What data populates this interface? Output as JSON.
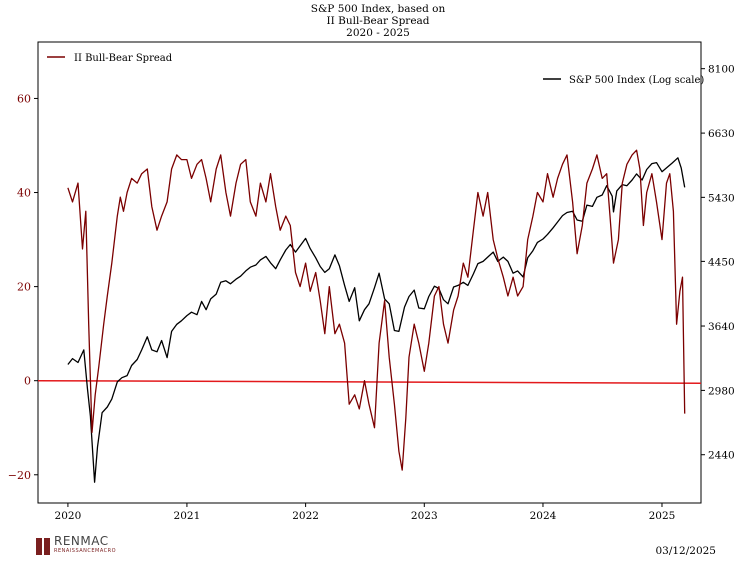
{
  "title": {
    "line1": "S&P 500 Index, based on",
    "line2": "II Bull-Bear Spread",
    "line3": "2020 - 2025"
  },
  "footer": {
    "logo_name": "RENMAC",
    "logo_sub": "RENAISSANCEMACRO",
    "date": "03/12/2025"
  },
  "colors": {
    "spread": "#7b0000",
    "sp500": "#000000",
    "zero_line": "#e3191c"
  },
  "chart_data": {
    "type": "line",
    "title": "S&P 500 Index, based on II Bull-Bear Spread 2020 - 2025",
    "x_ticks": [
      "2020",
      "2021",
      "2022",
      "2023",
      "2024",
      "2025"
    ],
    "x_range": [
      "2019-10-01",
      "2025-05-01"
    ],
    "y_left": {
      "range": [
        -26,
        72
      ],
      "ticks": [
        -20,
        0,
        20,
        40,
        60
      ],
      "tick_color": "#7b0000"
    },
    "y_right": {
      "scale": "log",
      "range": [
        2100,
        8800
      ],
      "ticks": [
        2440,
        2980,
        3640,
        4450,
        5430,
        6630,
        8100
      ]
    },
    "reference_line": {
      "axis": "left",
      "value": 0,
      "color": "#e3191c"
    },
    "legend": [
      {
        "name": "II Bull-Bear Spread",
        "position": "top-left"
      },
      {
        "name": "S&P 500 Index (Log scale)",
        "position": "top-right"
      }
    ],
    "series": [
      {
        "name": "II Bull-Bear Spread",
        "axis": "left",
        "points": [
          [
            "2020-01-01",
            41
          ],
          [
            "2020-01-15",
            38
          ],
          [
            "2020-02-01",
            42
          ],
          [
            "2020-02-15",
            28
          ],
          [
            "2020-02-25",
            36
          ],
          [
            "2020-03-05",
            12
          ],
          [
            "2020-03-15",
            -11
          ],
          [
            "2020-03-25",
            -3
          ],
          [
            "2020-04-05",
            3
          ],
          [
            "2020-04-20",
            12
          ],
          [
            "2020-05-01",
            18
          ],
          [
            "2020-05-15",
            25
          ],
          [
            "2020-06-01",
            35
          ],
          [
            "2020-06-10",
            39
          ],
          [
            "2020-06-20",
            36
          ],
          [
            "2020-07-01",
            40
          ],
          [
            "2020-07-15",
            43
          ],
          [
            "2020-08-01",
            42
          ],
          [
            "2020-08-15",
            44
          ],
          [
            "2020-09-01",
            45
          ],
          [
            "2020-09-15",
            37
          ],
          [
            "2020-10-01",
            32
          ],
          [
            "2020-10-15",
            35
          ],
          [
            "2020-11-01",
            38
          ],
          [
            "2020-11-15",
            45
          ],
          [
            "2020-12-01",
            48
          ],
          [
            "2020-12-15",
            47
          ],
          [
            "2021-01-01",
            47
          ],
          [
            "2021-01-15",
            43
          ],
          [
            "2021-02-01",
            46
          ],
          [
            "2021-02-15",
            47
          ],
          [
            "2021-03-01",
            43
          ],
          [
            "2021-03-15",
            38
          ],
          [
            "2021-04-01",
            45
          ],
          [
            "2021-04-15",
            48
          ],
          [
            "2021-05-01",
            40
          ],
          [
            "2021-05-15",
            35
          ],
          [
            "2021-06-01",
            42
          ],
          [
            "2021-06-15",
            46
          ],
          [
            "2021-07-01",
            47
          ],
          [
            "2021-07-15",
            38
          ],
          [
            "2021-08-01",
            35
          ],
          [
            "2021-08-15",
            42
          ],
          [
            "2021-09-01",
            38
          ],
          [
            "2021-09-15",
            44
          ],
          [
            "2021-10-01",
            37
          ],
          [
            "2021-10-15",
            32
          ],
          [
            "2021-11-01",
            35
          ],
          [
            "2021-11-15",
            33
          ],
          [
            "2021-12-01",
            23
          ],
          [
            "2021-12-15",
            20
          ],
          [
            "2022-01-01",
            25
          ],
          [
            "2022-01-15",
            19
          ],
          [
            "2022-02-01",
            23
          ],
          [
            "2022-02-15",
            17
          ],
          [
            "2022-03-01",
            10
          ],
          [
            "2022-03-15",
            20
          ],
          [
            "2022-04-01",
            10
          ],
          [
            "2022-04-15",
            12
          ],
          [
            "2022-05-01",
            8
          ],
          [
            "2022-05-15",
            -5
          ],
          [
            "2022-06-01",
            -3
          ],
          [
            "2022-06-15",
            -6
          ],
          [
            "2022-07-01",
            0
          ],
          [
            "2022-07-15",
            -5
          ],
          [
            "2022-08-01",
            -10
          ],
          [
            "2022-08-15",
            8
          ],
          [
            "2022-09-01",
            17
          ],
          [
            "2022-09-15",
            5
          ],
          [
            "2022-10-01",
            -5
          ],
          [
            "2022-10-15",
            -15
          ],
          [
            "2022-10-25",
            -19
          ],
          [
            "2022-11-05",
            -8
          ],
          [
            "2022-11-15",
            5
          ],
          [
            "2022-12-01",
            12
          ],
          [
            "2022-12-15",
            8
          ],
          [
            "2023-01-01",
            2
          ],
          [
            "2023-01-15",
            8
          ],
          [
            "2023-02-01",
            18
          ],
          [
            "2023-02-15",
            20
          ],
          [
            "2023-03-01",
            12
          ],
          [
            "2023-03-15",
            8
          ],
          [
            "2023-04-01",
            15
          ],
          [
            "2023-04-15",
            18
          ],
          [
            "2023-05-01",
            25
          ],
          [
            "2023-05-15",
            22
          ],
          [
            "2023-06-01",
            32
          ],
          [
            "2023-06-15",
            40
          ],
          [
            "2023-07-01",
            35
          ],
          [
            "2023-07-15",
            40
          ],
          [
            "2023-08-01",
            30
          ],
          [
            "2023-08-15",
            26
          ],
          [
            "2023-09-01",
            22
          ],
          [
            "2023-09-15",
            18
          ],
          [
            "2023-10-01",
            22
          ],
          [
            "2023-10-15",
            18
          ],
          [
            "2023-11-01",
            20
          ],
          [
            "2023-11-15",
            30
          ],
          [
            "2023-12-01",
            35
          ],
          [
            "2023-12-15",
            40
          ],
          [
            "2024-01-01",
            38
          ],
          [
            "2024-01-15",
            44
          ],
          [
            "2024-02-01",
            39
          ],
          [
            "2024-02-15",
            43
          ],
          [
            "2024-03-01",
            46
          ],
          [
            "2024-03-15",
            48
          ],
          [
            "2024-04-01",
            38
          ],
          [
            "2024-04-15",
            27
          ],
          [
            "2024-05-01",
            33
          ],
          [
            "2024-05-15",
            42
          ],
          [
            "2024-06-01",
            45
          ],
          [
            "2024-06-15",
            48
          ],
          [
            "2024-07-01",
            43
          ],
          [
            "2024-07-15",
            44
          ],
          [
            "2024-07-25",
            35
          ],
          [
            "2024-08-05",
            25
          ],
          [
            "2024-08-20",
            30
          ],
          [
            "2024-09-01",
            42
          ],
          [
            "2024-09-15",
            46
          ],
          [
            "2024-10-01",
            48
          ],
          [
            "2024-10-15",
            49
          ],
          [
            "2024-10-25",
            45
          ],
          [
            "2024-11-05",
            33
          ],
          [
            "2024-11-15",
            40
          ],
          [
            "2024-12-01",
            44
          ],
          [
            "2024-12-15",
            38
          ],
          [
            "2025-01-01",
            30
          ],
          [
            "2025-01-15",
            42
          ],
          [
            "2025-01-25",
            44
          ],
          [
            "2025-02-05",
            36
          ],
          [
            "2025-02-15",
            12
          ],
          [
            "2025-02-25",
            19
          ],
          [
            "2025-03-05",
            22
          ],
          [
            "2025-03-12",
            -7
          ]
        ]
      },
      {
        "name": "S&P 500 Index (Log scale)",
        "axis": "right",
        "points": [
          [
            "2020-01-01",
            3230
          ],
          [
            "2020-01-15",
            3290
          ],
          [
            "2020-02-01",
            3250
          ],
          [
            "2020-02-19",
            3380
          ],
          [
            "2020-03-01",
            3000
          ],
          [
            "2020-03-10",
            2750
          ],
          [
            "2020-03-23",
            2240
          ],
          [
            "2020-04-01",
            2500
          ],
          [
            "2020-04-15",
            2780
          ],
          [
            "2020-05-01",
            2830
          ],
          [
            "2020-05-15",
            2900
          ],
          [
            "2020-06-01",
            3060
          ],
          [
            "2020-06-15",
            3100
          ],
          [
            "2020-07-01",
            3120
          ],
          [
            "2020-07-15",
            3220
          ],
          [
            "2020-08-01",
            3280
          ],
          [
            "2020-08-15",
            3380
          ],
          [
            "2020-09-01",
            3520
          ],
          [
            "2020-09-15",
            3380
          ],
          [
            "2020-10-01",
            3360
          ],
          [
            "2020-10-15",
            3480
          ],
          [
            "2020-11-01",
            3300
          ],
          [
            "2020-11-15",
            3580
          ],
          [
            "2020-12-01",
            3660
          ],
          [
            "2020-12-15",
            3700
          ],
          [
            "2021-01-01",
            3760
          ],
          [
            "2021-01-15",
            3800
          ],
          [
            "2021-02-01",
            3770
          ],
          [
            "2021-02-15",
            3930
          ],
          [
            "2021-03-01",
            3830
          ],
          [
            "2021-03-15",
            3960
          ],
          [
            "2021-04-01",
            4020
          ],
          [
            "2021-04-15",
            4170
          ],
          [
            "2021-05-01",
            4190
          ],
          [
            "2021-05-15",
            4150
          ],
          [
            "2021-06-01",
            4210
          ],
          [
            "2021-06-15",
            4250
          ],
          [
            "2021-07-01",
            4320
          ],
          [
            "2021-07-15",
            4370
          ],
          [
            "2021-08-01",
            4400
          ],
          [
            "2021-08-15",
            4470
          ],
          [
            "2021-09-01",
            4520
          ],
          [
            "2021-09-15",
            4430
          ],
          [
            "2021-10-01",
            4350
          ],
          [
            "2021-10-15",
            4470
          ],
          [
            "2021-11-01",
            4610
          ],
          [
            "2021-11-15",
            4690
          ],
          [
            "2021-12-01",
            4580
          ],
          [
            "2021-12-15",
            4670
          ],
          [
            "2022-01-01",
            4780
          ],
          [
            "2022-01-15",
            4630
          ],
          [
            "2022-02-01",
            4500
          ],
          [
            "2022-02-15",
            4380
          ],
          [
            "2022-03-01",
            4300
          ],
          [
            "2022-03-15",
            4350
          ],
          [
            "2022-04-01",
            4540
          ],
          [
            "2022-04-15",
            4390
          ],
          [
            "2022-05-01",
            4130
          ],
          [
            "2022-05-15",
            3930
          ],
          [
            "2022-06-01",
            4100
          ],
          [
            "2022-06-15",
            3700
          ],
          [
            "2022-07-01",
            3830
          ],
          [
            "2022-07-15",
            3900
          ],
          [
            "2022-08-01",
            4100
          ],
          [
            "2022-08-15",
            4290
          ],
          [
            "2022-09-01",
            3960
          ],
          [
            "2022-09-15",
            3900
          ],
          [
            "2022-10-01",
            3590
          ],
          [
            "2022-10-15",
            3580
          ],
          [
            "2022-11-01",
            3860
          ],
          [
            "2022-11-15",
            3990
          ],
          [
            "2022-12-01",
            4070
          ],
          [
            "2022-12-15",
            3850
          ],
          [
            "2023-01-01",
            3840
          ],
          [
            "2023-01-15",
            3990
          ],
          [
            "2023-02-01",
            4120
          ],
          [
            "2023-02-15",
            4090
          ],
          [
            "2023-03-01",
            3950
          ],
          [
            "2023-03-15",
            3900
          ],
          [
            "2023-04-01",
            4110
          ],
          [
            "2023-04-15",
            4130
          ],
          [
            "2023-05-01",
            4170
          ],
          [
            "2023-05-15",
            4130
          ],
          [
            "2023-06-01",
            4280
          ],
          [
            "2023-06-15",
            4420
          ],
          [
            "2023-07-01",
            4450
          ],
          [
            "2023-07-15",
            4510
          ],
          [
            "2023-08-01",
            4580
          ],
          [
            "2023-08-15",
            4450
          ],
          [
            "2023-09-01",
            4510
          ],
          [
            "2023-09-15",
            4450
          ],
          [
            "2023-10-01",
            4290
          ],
          [
            "2023-10-15",
            4320
          ],
          [
            "2023-11-01",
            4240
          ],
          [
            "2023-11-15",
            4500
          ],
          [
            "2023-12-01",
            4600
          ],
          [
            "2023-12-15",
            4720
          ],
          [
            "2024-01-01",
            4770
          ],
          [
            "2024-01-15",
            4840
          ],
          [
            "2024-02-01",
            4940
          ],
          [
            "2024-02-15",
            5030
          ],
          [
            "2024-03-01",
            5130
          ],
          [
            "2024-03-15",
            5180
          ],
          [
            "2024-04-01",
            5200
          ],
          [
            "2024-04-15",
            5060
          ],
          [
            "2024-05-01",
            5040
          ],
          [
            "2024-05-15",
            5300
          ],
          [
            "2024-06-01",
            5280
          ],
          [
            "2024-06-15",
            5430
          ],
          [
            "2024-07-01",
            5470
          ],
          [
            "2024-07-15",
            5630
          ],
          [
            "2024-08-01",
            5450
          ],
          [
            "2024-08-05",
            5190
          ],
          [
            "2024-08-15",
            5540
          ],
          [
            "2024-09-01",
            5650
          ],
          [
            "2024-09-15",
            5630
          ],
          [
            "2024-10-01",
            5730
          ],
          [
            "2024-10-15",
            5840
          ],
          [
            "2024-11-01",
            5730
          ],
          [
            "2024-11-15",
            5920
          ],
          [
            "2024-12-01",
            6030
          ],
          [
            "2024-12-15",
            6050
          ],
          [
            "2025-01-01",
            5880
          ],
          [
            "2025-01-15",
            5950
          ],
          [
            "2025-02-01",
            6040
          ],
          [
            "2025-02-19",
            6140
          ],
          [
            "2025-03-01",
            5950
          ],
          [
            "2025-03-12",
            5600
          ]
        ]
      }
    ]
  }
}
